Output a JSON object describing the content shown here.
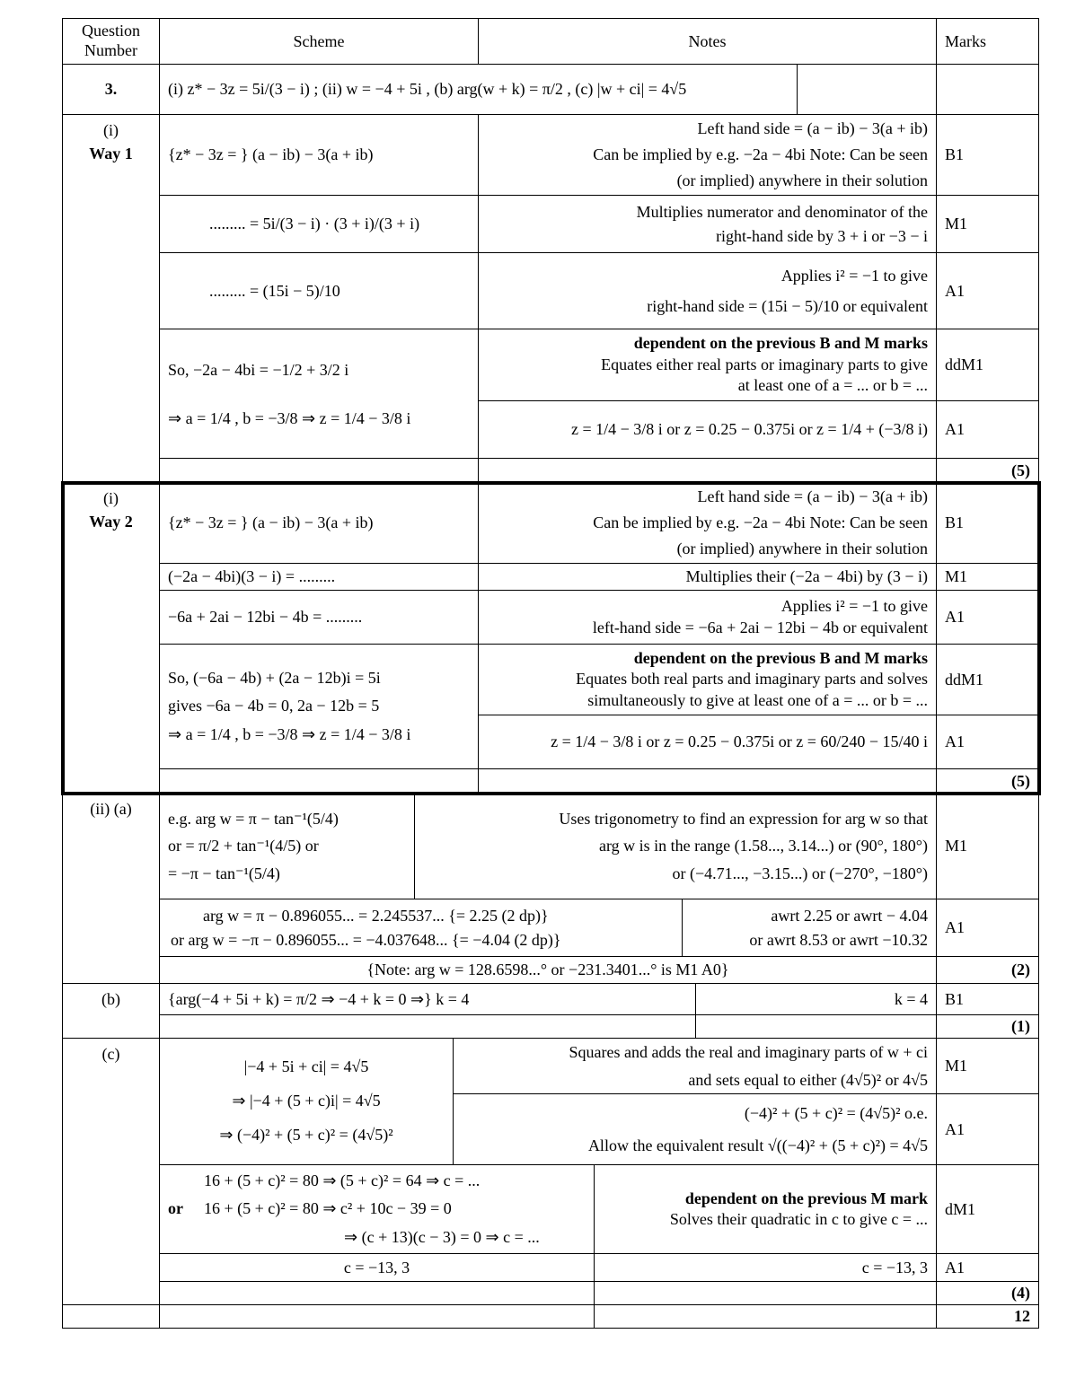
{
  "header": {
    "question": "Question Number",
    "scheme": "Scheme",
    "notes": "Notes",
    "marks": "Marks"
  },
  "q3": {
    "number": "3.",
    "statement": "(i)  z* − 3z = 5i/(3 − i) ;  (ii)  w = −4 + 5i ,  (b) arg(w + k) = π/2 ,  (c) |w + ci| = 4√5"
  },
  "way1": {
    "label": "(i)",
    "way": "Way 1",
    "rows": [
      {
        "scheme": [
          "{z* − 3z = }  (a − ib) − 3(a + ib)"
        ],
        "notes": [
          "Left hand side = (a − ib) − 3(a + ib)",
          "Can be implied by e.g. −2a − 4bi  Note: Can be seen",
          "(or implied) anywhere in their solution"
        ],
        "mark": "B1"
      },
      {
        "scheme": [
          "......... = 5i/(3 − i) · (3 + i)/(3 + i)"
        ],
        "notes": [
          "Multiplies numerator and denominator of the",
          "right-hand side by 3 + i  or  −3 − i"
        ],
        "mark": "M1"
      },
      {
        "scheme": [
          "......... = (15i − 5)/10"
        ],
        "notes": [
          "Applies i² = −1  to give",
          "right-hand side = (15i − 5)/10  or equivalent"
        ],
        "mark": "A1"
      },
      {
        "scheme": [
          "So, −2a − 4bi = −1/2 + 3/2 i",
          "⇒ a = 1/4 ,  b = −3/8   ⇒  z = 1/4 − 3/8 i"
        ],
        "notes": [
          "dependent on the previous B and M marks",
          "Equates either real parts or imaginary parts to give",
          "at least one of  a = ...  or  b = ..."
        ],
        "mark": "ddM1"
      },
      {
        "notes": [
          "z = 1/4 − 3/8 i  or  z = 0.25 − 0.375i  or  z = 1/4 + (−3/8 i)"
        ],
        "mark": "A1"
      }
    ],
    "total": "(5)"
  },
  "way2": {
    "label": "(i)",
    "way": "Way 2",
    "rows": [
      {
        "scheme": [
          "{z* − 3z = }  (a − ib) − 3(a + ib)"
        ],
        "notes": [
          "Left hand side = (a − ib) − 3(a + ib)",
          "Can be implied by e.g. −2a − 4bi  Note: Can be seen",
          "(or implied) anywhere in their solution"
        ],
        "mark": "B1"
      },
      {
        "scheme": [
          "(−2a − 4bi)(3 − i) = ........."
        ],
        "notes": [
          "Multiplies their (−2a − 4bi)  by  (3 − i)"
        ],
        "mark": "M1"
      },
      {
        "scheme": [
          "−6a + 2ai − 12bi − 4b = ........."
        ],
        "notes": [
          "Applies i² = −1  to give",
          "left-hand side = −6a + 2ai − 12bi − 4b or equivalent"
        ],
        "mark": "A1"
      },
      {
        "scheme": [
          "So, (−6a − 4b) + (2a − 12b)i = 5i",
          "gives −6a − 4b = 0,  2a − 12b = 5",
          "⇒ a = 1/4 ,  b = −3/8   ⇒  z = 1/4 − 3/8 i"
        ],
        "notes": [
          "dependent on the previous B and M marks",
          "Equates both real parts and imaginary parts and solves",
          "simultaneously to give at least one of  a = ...  or  b = ..."
        ],
        "mark": "ddM1"
      },
      {
        "notes": [
          "z = 1/4 − 3/8 i  or  z = 0.25 − 0.375i  or  z = 60/240 − 15/40 i"
        ],
        "mark": "A1"
      }
    ],
    "total": "(5)"
  },
  "part_ii_a": {
    "label": "(ii) (a)",
    "m1_scheme": [
      "e.g.  arg w = π − tan⁻¹(5/4)",
      "or = π/2 + tan⁻¹(4/5)  or",
      "= −π − tan⁻¹(5/4)"
    ],
    "m1_notes": [
      "Uses trigonometry to find an expression for  arg w so that",
      "arg w is in the range  (1.58..., 3.14...) or  (90°, 180°)",
      "or  (−4.71..., −3.15...)  or  (−270°, −180°)"
    ],
    "m1_mark": "M1",
    "a1_scheme": [
      "arg w = π − 0.896055... =  2.245537...  {= 2.25 (2 dp)}",
      "or  arg w = −π − 0.896055... = −4.037648...  {= −4.04 (2 dp)}"
    ],
    "a1_notes": [
      "awrt 2.25  or  awrt − 4.04",
      "or awrt 8.53 or awrt  −10.32"
    ],
    "a1_mark": "A1",
    "note": "{Note:  arg w = 128.6598...°  or  −231.3401...°  is M1 A0}",
    "total": "(2)"
  },
  "part_b": {
    "label": "(b)",
    "scheme": "{arg(−4 + 5i + k) = π/2 ⇒ −4 + k = 0 ⇒}  k = 4",
    "notes": "k = 4",
    "mark": "B1",
    "total": "(1)"
  },
  "part_c": {
    "label": "(c)",
    "scheme1": [
      "|−4 + 5i + ci| = 4√5",
      "⇒ |−4 + (5 + c)i| = 4√5",
      "⇒ (−4)² + (5 + c)² = (4√5)²"
    ],
    "m1_notes": [
      "Squares and adds the real and imaginary parts of  w + ci",
      "and sets equal to either  (4√5)²  or  4√5"
    ],
    "m1_mark": "M1",
    "a1_notes": [
      "(−4)² + (5 + c)² = (4√5)²  o.e.",
      "Allow the equivalent result  √((−4)² + (5 + c)²) = 4√5"
    ],
    "a1_mark": "A1",
    "dm1_scheme": [
      "16 + (5 + c)² = 80 ⇒ (5 + c)² = 64 ⇒ c = ...",
      "or",
      "16 + (5 + c)² = 80 ⇒ c² + 10c − 39 = 0",
      "⇒ (c + 13)(c − 3) = 0  ⇒ c = ..."
    ],
    "dm1_notes": [
      "dependent on the previous M mark",
      "Solves their quadratic in c to give  c = ..."
    ],
    "dm1_mark": "dM1",
    "a1b_scheme": "c = −13, 3",
    "a1b_notes": "c = −13, 3",
    "a1b_mark": "A1",
    "total": "(4)"
  },
  "grand_total": "12"
}
